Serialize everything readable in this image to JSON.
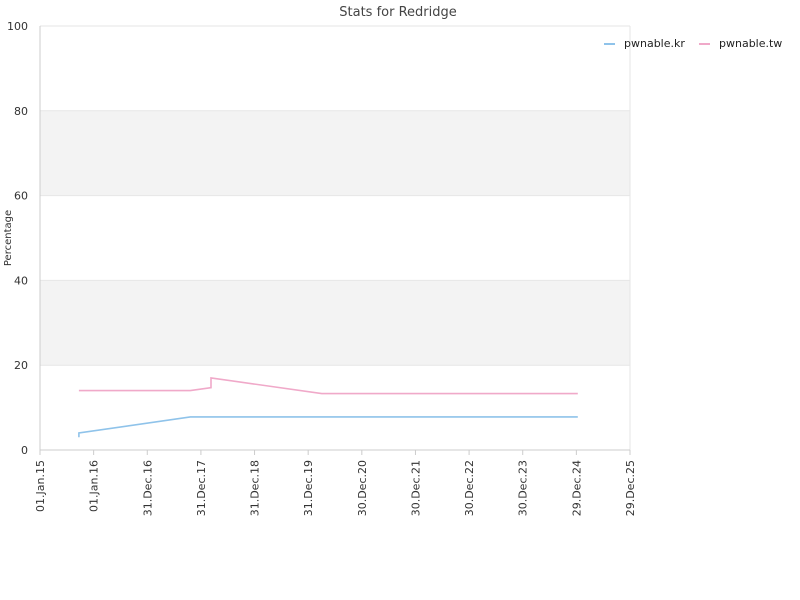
{
  "chart_data": {
    "type": "line",
    "title": "Stats for Redridge",
    "ylabel": "Percentage",
    "xlabel": "",
    "ylim": [
      0,
      100
    ],
    "yticks": [
      0,
      20,
      40,
      60,
      80,
      100
    ],
    "xlim": [
      "2015-01-01",
      "2025-12-29"
    ],
    "xticks": [
      {
        "date": "2015-01-01",
        "label": "01.Jan.15"
      },
      {
        "date": "2016-01-01",
        "label": "01.Jan.16"
      },
      {
        "date": "2016-12-31",
        "label": "31.Dec.16"
      },
      {
        "date": "2017-12-31",
        "label": "31.Dec.17"
      },
      {
        "date": "2018-12-31",
        "label": "31.Dec.18"
      },
      {
        "date": "2019-12-31",
        "label": "31.Dec.19"
      },
      {
        "date": "2020-12-30",
        "label": "30.Dec.20"
      },
      {
        "date": "2021-12-30",
        "label": "30.Dec.21"
      },
      {
        "date": "2022-12-30",
        "label": "30.Dec.22"
      },
      {
        "date": "2023-12-30",
        "label": "30.Dec.23"
      },
      {
        "date": "2024-12-29",
        "label": "29.Dec.24"
      },
      {
        "date": "2025-12-29",
        "label": "29.Dec.25"
      }
    ],
    "grid": true,
    "alternating_bands": true,
    "band_color": "#f3f3f3",
    "legend_position": "top-right",
    "series": [
      {
        "name": "pwnable.kr",
        "color": "#8fc3ea",
        "points": [
          {
            "x": "2015-09-23",
            "y": 3
          },
          {
            "x": "2015-09-23",
            "y": 4
          },
          {
            "x": "2017-10-20",
            "y": 7.8
          },
          {
            "x": "2025-01-08",
            "y": 7.8
          }
        ]
      },
      {
        "name": "pwnable.tw",
        "color": "#f0a9c9",
        "points": [
          {
            "x": "2015-09-23",
            "y": 14
          },
          {
            "x": "2017-10-20",
            "y": 14
          },
          {
            "x": "2018-03-10",
            "y": 14.7
          },
          {
            "x": "2018-03-10",
            "y": 17
          },
          {
            "x": "2020-04-01",
            "y": 13.3
          },
          {
            "x": "2025-01-08",
            "y": 13.3
          }
        ]
      }
    ]
  }
}
